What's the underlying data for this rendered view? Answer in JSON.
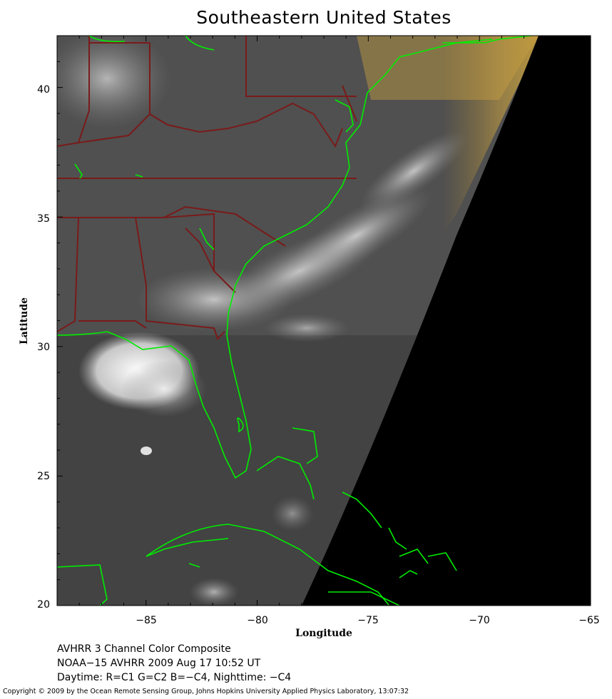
{
  "title": "Southeastern United States",
  "axes": {
    "x_label": "Longitude",
    "y_label": "Latitude",
    "x_ticks": [
      "−85",
      "−80",
      "−75",
      "−70",
      "−65"
    ],
    "y_ticks": [
      "40",
      "35",
      "30",
      "25",
      "20"
    ],
    "lon_range": [
      -89,
      -65
    ],
    "lat_range": [
      20,
      42
    ]
  },
  "caption": {
    "line1": "AVHRR 3 Channel Color Composite",
    "line2": "NOAA−15 AVHRR 2009 Aug 17 10:52 UT",
    "line3": "Daytime: R=C1 G=C2 B=−C4, Nighttime: −C4"
  },
  "copyright": "Copyright © 2009 by the Ocean Remote Sensing Group, Johns Hopkins University Applied Physics Laboratory, 13:07:32",
  "colors": {
    "coastline": "#00ee00",
    "state_borders": "#7a1a1a",
    "night_side": "#000000",
    "day_tint": "#c8a040"
  }
}
